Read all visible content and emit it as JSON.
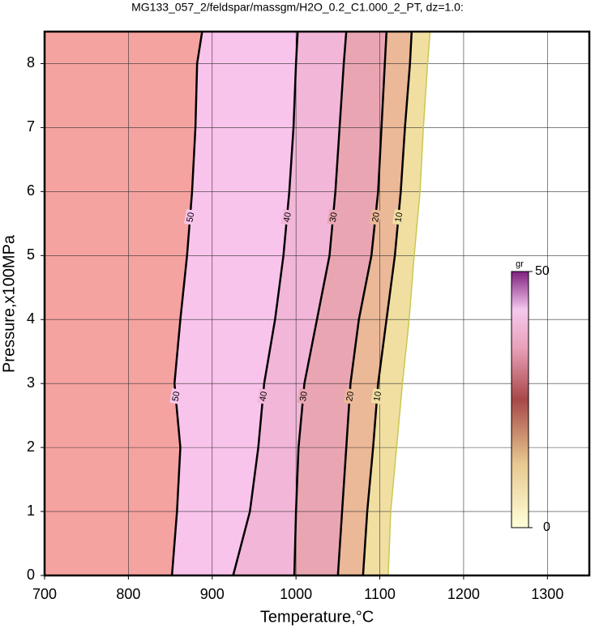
{
  "chart_data": {
    "type": "contour",
    "title": "MG133_057_2/feldspar/massgm/H2O_0.2_C1.000_2_PT, dz=1.0:",
    "x_label": "Temperature,°C",
    "y_label": "Pressure,x100MPa",
    "xlim": [
      700,
      1350
    ],
    "ylim": [
      0,
      8.5
    ],
    "xticks": [
      700,
      800,
      900,
      1000,
      1100,
      1200,
      1300
    ],
    "yticks": [
      0,
      1,
      2,
      3,
      4,
      5,
      6,
      7,
      8
    ],
    "grid": true,
    "y": [
      0,
      1,
      2,
      3,
      4,
      5,
      6,
      7,
      8,
      8.5
    ],
    "background_fill": "#f5a3a0",
    "contours": [
      {
        "level": 50,
        "color": "#000000",
        "fill": "#f9c4ec",
        "x": [
          852,
          858,
          862,
          855,
          862,
          870,
          876,
          880,
          882,
          888
        ]
      },
      {
        "level": 40,
        "color": "#000000",
        "fill": "#f2b6d8",
        "x": [
          925,
          945,
          955,
          962,
          975,
          985,
          992,
          997,
          1000,
          1002
        ]
      },
      {
        "level": 30,
        "color": "#000000",
        "fill": "#e9a6b2",
        "x": [
          998,
          1000,
          1003,
          1010,
          1025,
          1040,
          1047,
          1052,
          1057,
          1060
        ]
      },
      {
        "level": 20,
        "color": "#000000",
        "fill": "#ebb898",
        "x": [
          1050,
          1055,
          1060,
          1065,
          1075,
          1090,
          1098,
          1102,
          1106,
          1108
        ]
      },
      {
        "level": 10,
        "color": "#000000",
        "fill": "#f1dfa2",
        "x": [
          1080,
          1085,
          1092,
          1098,
          1108,
          1118,
          1125,
          1130,
          1136,
          1138
        ]
      }
    ],
    "edge": {
      "color": "#c8c850",
      "x": [
        1110,
        1113,
        1120,
        1127,
        1135,
        1141,
        1148,
        1152,
        1157,
        1160
      ]
    },
    "label_pressures": [
      5.6,
      2.8
    ],
    "colorbar": {
      "unit": "gr",
      "max": 50,
      "min": 0
    }
  }
}
